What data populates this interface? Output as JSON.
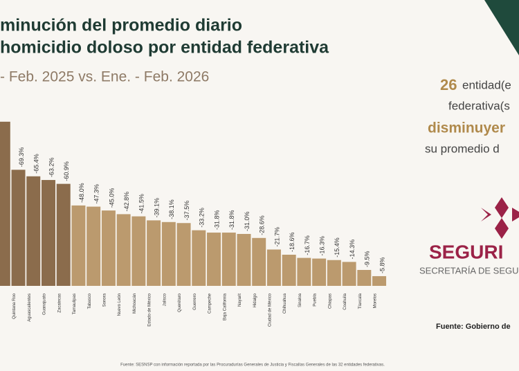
{
  "chart_data": {
    "type": "bar",
    "title_lines": [
      "minución del promedio diario",
      "homicidio doloso por entidad federativa"
    ],
    "subtitle": "- Feb. 2025 vs. Ene. - Feb. 2026",
    "categories": [
      null,
      "Quintana Roo",
      "Aguascalientes",
      "Guanajuato",
      "Zacatecas",
      "Tamaulipas",
      "Tabasco",
      "Sonora",
      "Nuevo León",
      "Michoacán",
      "Estado de México",
      "Jalisco",
      "Querétaro",
      "Guerrero",
      "Campeche",
      "Baja California",
      "Nayarit",
      "Hidalgo",
      "Ciudad de México",
      "Chihuahua",
      "Sinaloa",
      "Puebla",
      "Chiapas",
      "Coahuila",
      "Tlaxcala",
      "Morelos"
    ],
    "values": [
      -98,
      -69.3,
      -65.4,
      -63.2,
      -60.9,
      -48.0,
      -47.3,
      -45.0,
      -42.8,
      -41.5,
      -39.1,
      -38.1,
      -37.5,
      -33.2,
      -31.8,
      -31.8,
      -31.0,
      -28.6,
      -21.7,
      -18.6,
      -16.7,
      -16.3,
      -15.4,
      -14.3,
      -9.5,
      -5.8
    ],
    "value_labels": [
      null,
      "-69.3%",
      "-65.4%",
      "-63.2%",
      "-60.9%",
      "-48.0%",
      "-47.3%",
      "-45.0%",
      "-42.8%",
      "-41.5%",
      "-39.1%",
      "-38.1%",
      "-37.5%",
      "-33.2%",
      "-31.8%",
      "-31.8%",
      "-31.0%",
      "-28.6%",
      "-21.7%",
      "-18.6%",
      "-16.7%",
      "-16.3%",
      "-15.4%",
      "-14.3%",
      "-9.5%",
      "-5.8%"
    ],
    "colors": [
      "#8b6c4c",
      "#8b6c4c",
      "#8b6c4c",
      "#8b6c4c",
      "#8b6c4c",
      "#bb9a6e",
      "#bb9a6e",
      "#bb9a6e",
      "#bb9a6e",
      "#bb9a6e",
      "#bb9a6e",
      "#bb9a6e",
      "#bb9a6e",
      "#bb9a6e",
      "#bb9a6e",
      "#bb9a6e",
      "#bb9a6e",
      "#bb9a6e",
      "#bb9a6e",
      "#bb9a6e",
      "#bb9a6e",
      "#bb9a6e",
      "#bb9a6e",
      "#bb9a6e",
      "#bb9a6e",
      "#bb9a6e"
    ],
    "source": "Fuente: SESNSP con información reportada por las Procuradurías Generales de Justicia y Fiscalías Generales de las 32 entidades federativas."
  },
  "side_panel": {
    "count": "26",
    "line1": "entidad(e",
    "line2": "federativa(s",
    "line3": "disminuyer",
    "line4": "su promedio d",
    "logo": "SEGURI",
    "logo_sub": "SECRETARÍA DE SEGUR",
    "source": "Fuente: Gobierno de"
  }
}
